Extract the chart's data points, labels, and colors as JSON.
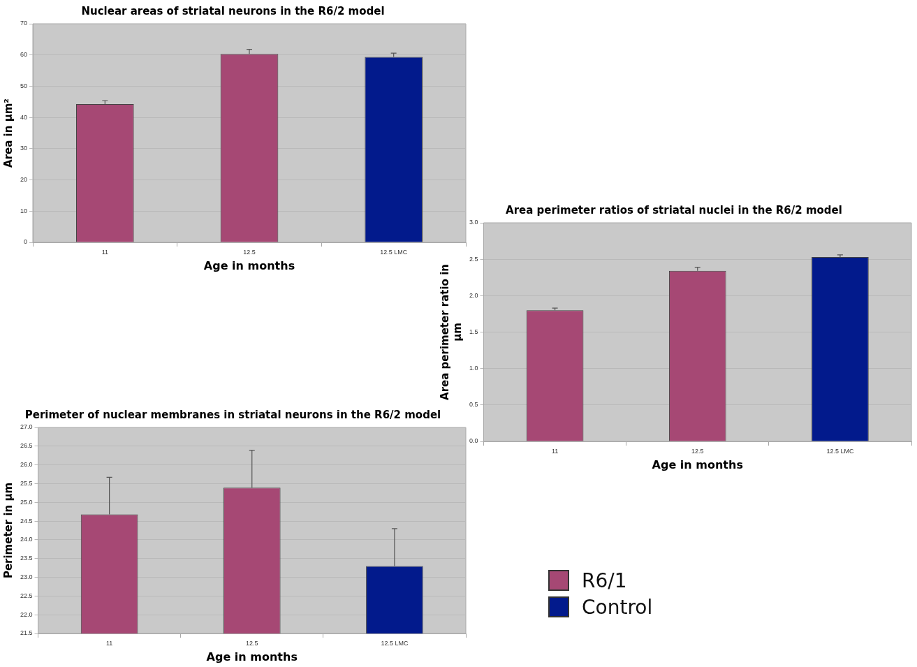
{
  "chart_data": [
    {
      "type": "bar",
      "title": "Nuclear areas of striatal neurons in the R6/2 model",
      "xlabel": "Age in months",
      "ylabel": "Area in µm²",
      "categories": [
        "11",
        "12.5",
        "12.5 LMC"
      ],
      "series": [
        {
          "name": "R6/1",
          "color": "#a64874",
          "values": [
            44.3,
            60.3,
            null
          ],
          "errors": [
            [
              44.3,
              45.4
            ],
            [
              60.3,
              61.8
            ],
            null
          ]
        },
        {
          "name": "Control",
          "color": "#021a8c",
          "values": [
            null,
            null,
            59.4
          ],
          "errors": [
            null,
            null,
            [
              59.4,
              60.6
            ]
          ]
        }
      ],
      "ylim": [
        0,
        70
      ],
      "yticks": [
        0,
        10,
        20,
        30,
        40,
        50,
        60,
        70
      ],
      "grid": "y",
      "legend": "bottom right"
    },
    {
      "type": "bar",
      "title": "Area perimeter ratios of striatal nuclei in the R6/2 model",
      "xlabel": "Age in months",
      "ylabel": "Area perimeter ratio in µm",
      "categories": [
        "11",
        "12.5",
        "12.5 LMC"
      ],
      "series": [
        {
          "color": "#a64874",
          "values": [
            1.8,
            2.34,
            null
          ],
          "errors": [
            [
              1.8,
              1.83
            ],
            [
              2.34,
              2.39
            ],
            null
          ]
        },
        {
          "color": "#021a8c",
          "values": [
            null,
            null,
            2.53
          ],
          "errors": [
            null,
            null,
            [
              2.53,
              2.56
            ]
          ]
        }
      ],
      "ylim": [
        0,
        3
      ],
      "yticks": [
        {
          "value": 0,
          "label": "0.0"
        },
        0.5,
        {
          "value": 1,
          "label": "1.0"
        },
        1.5,
        {
          "value": 2,
          "label": "2.0"
        },
        2.5,
        {
          "value": 3,
          "label": "3.0"
        }
      ],
      "grid": "y",
      "legend": false
    },
    {
      "type": "bar",
      "title": "Perimeter of nuclear membranes in striatal neurons in the R6/2 model",
      "xlabel": "Age in months",
      "ylabel": "Perimeter in µm",
      "categories": [
        "11",
        "12.5",
        "12.5 LMC"
      ],
      "series": [
        {
          "color": "#a64874",
          "values": [
            24.68,
            25.39,
            null
          ],
          "errors": [
            [
              24.68,
              25.67
            ],
            [
              25.39,
              26.39
            ],
            null
          ]
        },
        {
          "color": "#021a8c",
          "values": [
            null,
            null,
            23.3
          ],
          "errors": [
            null,
            null,
            [
              23.3,
              24.3
            ]
          ]
        }
      ],
      "ylim": [
        21.5,
        27
      ],
      "yticks": [
        21.5,
        {
          "value": 22,
          "label": "22.0"
        },
        22.5,
        {
          "value": 23,
          "label": "23.0"
        },
        23.5,
        {
          "value": 24,
          "label": "24.0"
        },
        24.5,
        {
          "value": 25,
          "label": "25.0"
        },
        25.5,
        {
          "value": 26,
          "label": "26.0"
        },
        26.5,
        {
          "value": 27,
          "label": "27.0"
        }
      ],
      "grid": "y",
      "legend": false
    }
  ]
}
